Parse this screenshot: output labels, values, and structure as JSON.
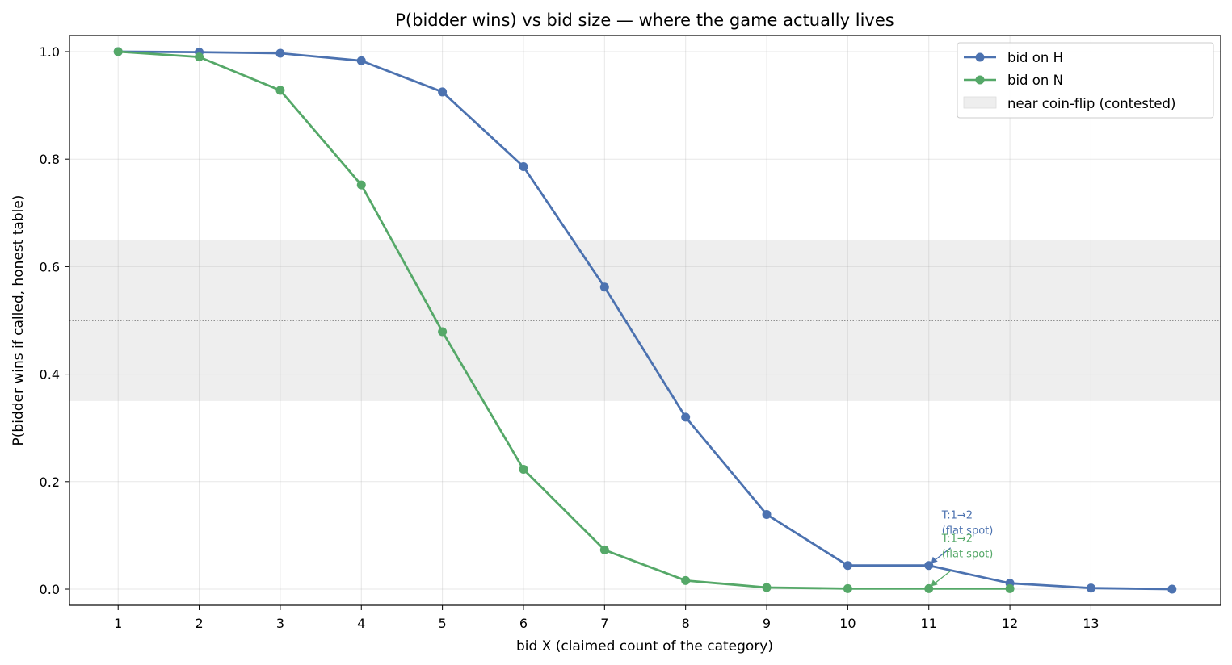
{
  "chart_data": {
    "type": "line",
    "title": "P(bidder wins) vs bid size — where the game actually lives",
    "xlabel": "bid X  (claimed count of the category)",
    "ylabel": "P(bidder wins if called, honest table)",
    "xlim": [
      0.4,
      14.6
    ],
    "ylim": [
      -0.03,
      1.03
    ],
    "xticks": [
      1,
      2,
      3,
      4,
      5,
      6,
      7,
      8,
      9,
      10,
      11,
      12,
      13
    ],
    "yticks": [
      0.0,
      0.2,
      0.4,
      0.6,
      0.8,
      1.0
    ],
    "ytick_labels": [
      "0.0",
      "0.2",
      "0.4",
      "0.6",
      "0.8",
      "1.0"
    ],
    "grid": true,
    "legend_position": "top-right",
    "contested_band": {
      "label": "near coin-flip (contested)",
      "ymin": 0.35,
      "ymax": 0.65,
      "color": "#eeeeee"
    },
    "reference_line": {
      "y": 0.5,
      "style": "dotted"
    },
    "series": [
      {
        "name": "bid on H",
        "color": "#4c72b0",
        "x": [
          1,
          2,
          3,
          4,
          5,
          6,
          7,
          8,
          9,
          10,
          11,
          12,
          13,
          14
        ],
        "y": [
          1.0,
          0.999,
          0.997,
          0.983,
          0.925,
          0.786,
          0.562,
          0.32,
          0.139,
          0.044,
          0.044,
          0.011,
          0.002,
          0.0
        ]
      },
      {
        "name": "bid on N",
        "color": "#55a868",
        "x": [
          1,
          2,
          3,
          4,
          5,
          6,
          7,
          8,
          9,
          10,
          11,
          12
        ],
        "y": [
          1.0,
          0.99,
          0.928,
          0.752,
          0.479,
          0.223,
          0.073,
          0.016,
          0.003,
          0.001,
          0.001,
          0.001
        ]
      }
    ],
    "annotations": [
      {
        "line1": "T:1→2",
        "line2": "(flat spot)",
        "series": "bid on H",
        "x": 11,
        "y": 0.044,
        "color": "#4c72b0"
      },
      {
        "line1": "T:1→2",
        "line2": "(flat spot)",
        "series": "bid on N",
        "x": 11,
        "y": 0.001,
        "color": "#55a868"
      }
    ]
  }
}
